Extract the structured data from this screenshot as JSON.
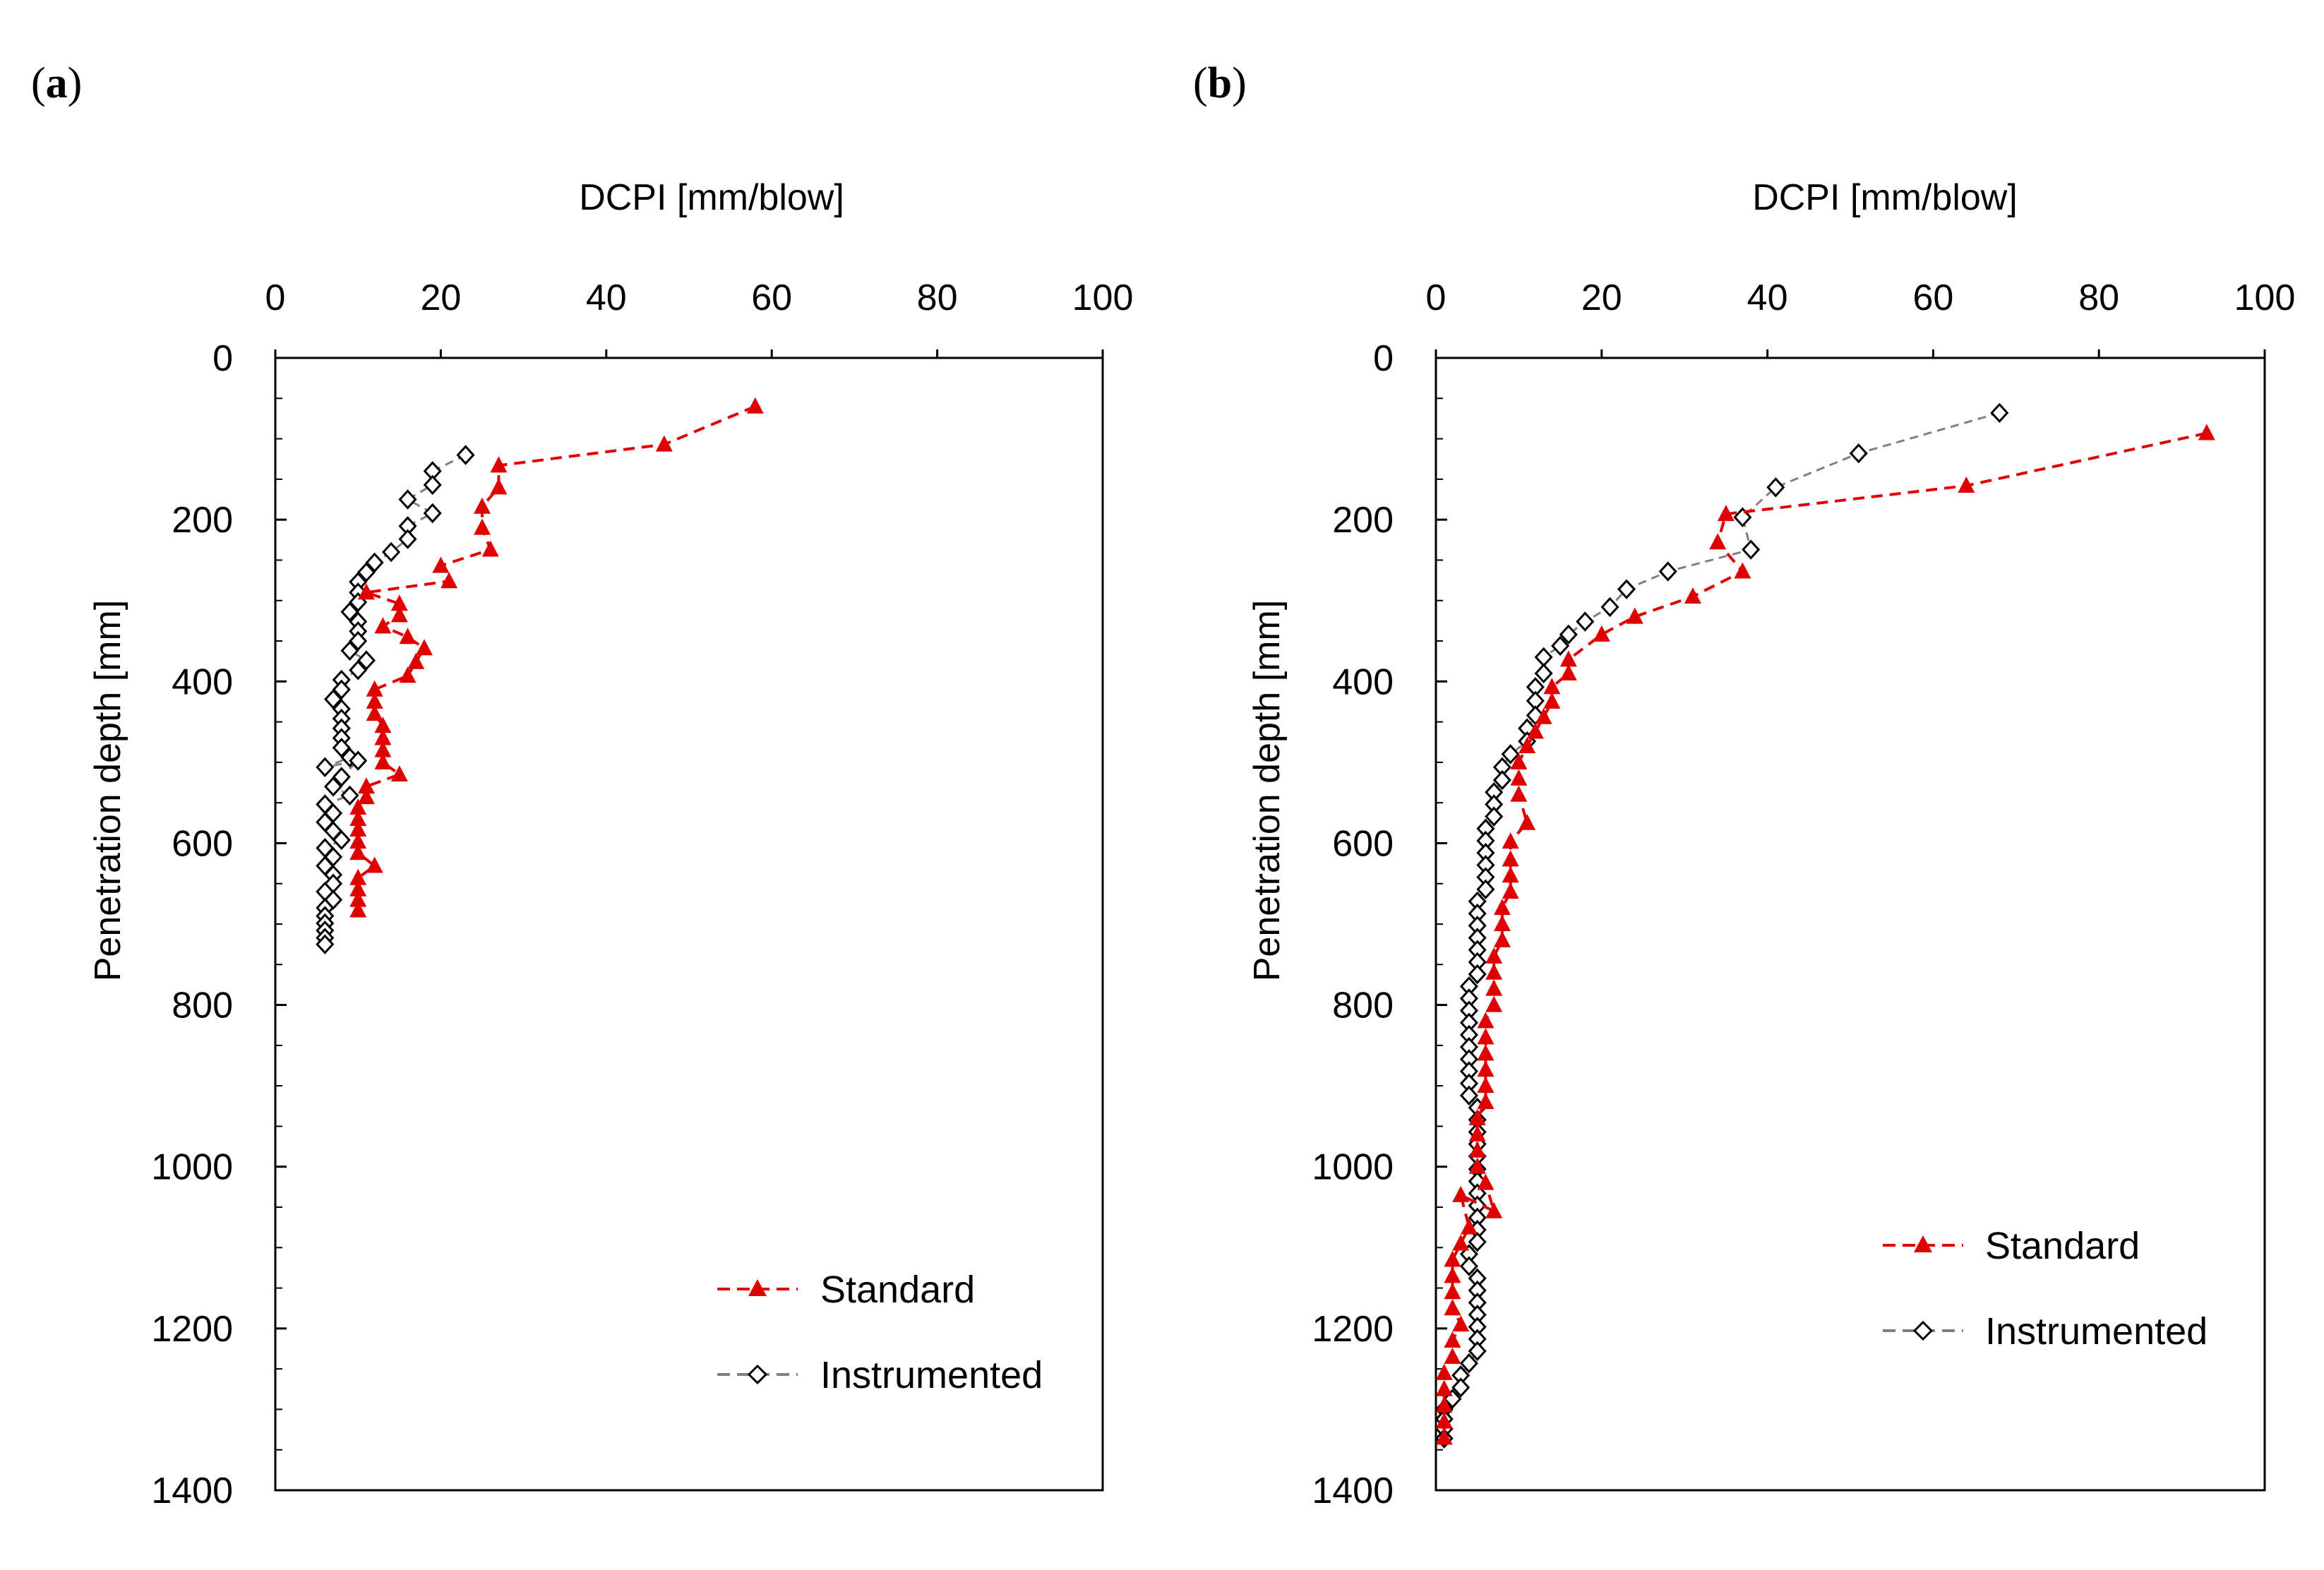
{
  "chart_data": [
    {
      "type": "scatter",
      "panel_label": "a",
      "xlabel": "DCPI [mm/blow]",
      "ylabel": "Penetration depth [mm]",
      "x_axis_position": "top",
      "y_axis_inverted": true,
      "xlim": [
        0,
        100
      ],
      "ylim": [
        0,
        1400
      ],
      "xticks": [
        0,
        20,
        40,
        60,
        80,
        100
      ],
      "yticks": [
        0,
        200,
        400,
        600,
        800,
        1000,
        1200,
        1400
      ],
      "grid": false,
      "legend_position": "bottom-right",
      "series": [
        {
          "name": "Standard",
          "color": "#e00000",
          "line_style": "dashed",
          "marker": "filled-triangle",
          "points": [
            [
              58,
              60
            ],
            [
              47,
              107
            ],
            [
              27,
              133
            ],
            [
              27,
              160
            ],
            [
              25,
              184
            ],
            [
              25,
              210
            ],
            [
              26,
              237
            ],
            [
              20,
              257
            ],
            [
              21,
              276
            ],
            [
              11,
              290
            ],
            [
              15,
              304
            ],
            [
              15,
              318
            ],
            [
              13,
              332
            ],
            [
              16,
              345
            ],
            [
              18,
              359
            ],
            [
              17,
              376
            ],
            [
              16,
              393
            ],
            [
              12,
              410
            ],
            [
              12,
              425
            ],
            [
              12,
              440
            ],
            [
              13,
              455
            ],
            [
              13,
              470
            ],
            [
              13,
              485
            ],
            [
              13,
              500
            ],
            [
              15,
              515
            ],
            [
              11,
              530
            ],
            [
              11,
              543
            ],
            [
              10,
              556
            ],
            [
              10,
              570
            ],
            [
              10,
              583
            ],
            [
              10,
              598
            ],
            [
              10,
              612
            ],
            [
              12,
              628
            ],
            [
              10,
              643
            ],
            [
              10,
              657
            ],
            [
              10,
              670
            ],
            [
              10,
              683
            ]
          ]
        },
        {
          "name": "Instrumented",
          "color": "#808080",
          "line_style": "dashed",
          "marker": "open-diamond",
          "points": [
            [
              23,
              120
            ],
            [
              19,
              140
            ],
            [
              19,
              157
            ],
            [
              16,
              175
            ],
            [
              19,
              192
            ],
            [
              16,
              208
            ],
            [
              16,
              224
            ],
            [
              14,
              240
            ],
            [
              12,
              253
            ],
            [
              11,
              265
            ],
            [
              10,
              277
            ],
            [
              10,
              290
            ],
            [
              10,
              302
            ],
            [
              9,
              314
            ],
            [
              10,
              326
            ],
            [
              10,
              338
            ],
            [
              10,
              350
            ],
            [
              9,
              362
            ],
            [
              11,
              374
            ],
            [
              10,
              386
            ],
            [
              8,
              398
            ],
            [
              8,
              410
            ],
            [
              7,
              422
            ],
            [
              8,
              434
            ],
            [
              8,
              446
            ],
            [
              8,
              458
            ],
            [
              8,
              470
            ],
            [
              8,
              482
            ],
            [
              9,
              494
            ],
            [
              6,
              506
            ],
            [
              10,
              498
            ],
            [
              8,
              518
            ],
            [
              7,
              530
            ],
            [
              9,
              541
            ],
            [
              6,
              552
            ],
            [
              7,
              563
            ],
            [
              6,
              574
            ],
            [
              7,
              585
            ],
            [
              8,
              596
            ],
            [
              6,
              606
            ],
            [
              7,
              617
            ],
            [
              6,
              628
            ],
            [
              7,
              639
            ],
            [
              7,
              650
            ],
            [
              6,
              660
            ],
            [
              7,
              670
            ],
            [
              6,
              680
            ],
            [
              6,
              690
            ],
            [
              6,
              699
            ],
            [
              6,
              708
            ],
            [
              6,
              717
            ],
            [
              6,
              725
            ]
          ]
        }
      ]
    },
    {
      "type": "scatter",
      "panel_label": "b",
      "xlabel": "DCPI [mm/blow]",
      "ylabel": "Penetration depth [mm]",
      "x_axis_position": "top",
      "y_axis_inverted": true,
      "xlim": [
        0,
        100
      ],
      "ylim": [
        0,
        1400
      ],
      "xticks": [
        0,
        20,
        40,
        60,
        80,
        100
      ],
      "yticks": [
        0,
        200,
        400,
        600,
        800,
        1000,
        1200,
        1400
      ],
      "grid": false,
      "legend_position": "right-bottom",
      "series": [
        {
          "name": "Standard",
          "color": "#e00000",
          "line_style": "dashed",
          "marker": "filled-triangle",
          "points": [
            [
              93,
              93
            ],
            [
              64,
              158
            ],
            [
              35,
              193
            ],
            [
              34,
              228
            ],
            [
              37,
              264
            ],
            [
              31,
              295
            ],
            [
              24,
              320
            ],
            [
              20,
              342
            ],
            [
              16,
              373
            ],
            [
              16,
              390
            ],
            [
              14,
              407
            ],
            [
              14,
              425
            ],
            [
              13,
              444
            ],
            [
              12,
              462
            ],
            [
              11,
              480
            ],
            [
              10,
              500
            ],
            [
              10,
              520
            ],
            [
              10,
              540
            ],
            [
              11,
              575
            ],
            [
              9,
              598
            ],
            [
              9,
              620
            ],
            [
              9,
              640
            ],
            [
              9,
              660
            ],
            [
              8,
              680
            ],
            [
              8,
              700
            ],
            [
              8,
              720
            ],
            [
              7,
              740
            ],
            [
              7,
              760
            ],
            [
              7,
              780
            ],
            [
              7,
              800
            ],
            [
              6,
              820
            ],
            [
              6,
              840
            ],
            [
              6,
              860
            ],
            [
              6,
              880
            ],
            [
              6,
              900
            ],
            [
              6,
              920
            ],
            [
              5,
              940
            ],
            [
              5,
              960
            ],
            [
              5,
              980
            ],
            [
              5,
              1000
            ],
            [
              6,
              1020
            ],
            [
              7,
              1055
            ],
            [
              3,
              1035
            ],
            [
              4,
              1075
            ],
            [
              3,
              1095
            ],
            [
              2,
              1115
            ],
            [
              2,
              1135
            ],
            [
              2,
              1155
            ],
            [
              2,
              1175
            ],
            [
              3,
              1195
            ],
            [
              2,
              1215
            ],
            [
              2,
              1235
            ],
            [
              1,
              1255
            ],
            [
              1,
              1275
            ],
            [
              1,
              1295
            ],
            [
              1,
              1315
            ],
            [
              1,
              1335
            ]
          ]
        },
        {
          "name": "Instrumented",
          "color": "#808080",
          "line_style": "dashed",
          "marker": "open-diamond",
          "points": [
            [
              68,
              68
            ],
            [
              51,
              118
            ],
            [
              41,
              160
            ],
            [
              37,
              197
            ],
            [
              38,
              237
            ],
            [
              28,
              264
            ],
            [
              23,
              286
            ],
            [
              21,
              308
            ],
            [
              18,
              326
            ],
            [
              16,
              342
            ],
            [
              15,
              356
            ],
            [
              13,
              370
            ],
            [
              13,
              390
            ],
            [
              12,
              407
            ],
            [
              12,
              424
            ],
            [
              12,
              442
            ],
            [
              11,
              458
            ],
            [
              11,
              474
            ],
            [
              9,
              490
            ],
            [
              8,
              506
            ],
            [
              8,
              522
            ],
            [
              7,
              537
            ],
            [
              7,
              552
            ],
            [
              7,
              567
            ],
            [
              6,
              582
            ],
            [
              6,
              597
            ],
            [
              6,
              612
            ],
            [
              6,
              627
            ],
            [
              6,
              642
            ],
            [
              6,
              657
            ],
            [
              5,
              672
            ],
            [
              5,
              687
            ],
            [
              5,
              702
            ],
            [
              5,
              717
            ],
            [
              5,
              732
            ],
            [
              5,
              747
            ],
            [
              5,
              762
            ],
            [
              4,
              777
            ],
            [
              4,
              792
            ],
            [
              4,
              807
            ],
            [
              4,
              822
            ],
            [
              4,
              837
            ],
            [
              4,
              852
            ],
            [
              4,
              867
            ],
            [
              4,
              882
            ],
            [
              4,
              897
            ],
            [
              4,
              912
            ],
            [
              5,
              927
            ],
            [
              5,
              942
            ],
            [
              5,
              957
            ],
            [
              5,
              972
            ],
            [
              5,
              987
            ],
            [
              5,
              1003
            ],
            [
              5,
              1018
            ],
            [
              5,
              1033
            ],
            [
              5,
              1048
            ],
            [
              5,
              1063
            ],
            [
              5,
              1078
            ],
            [
              5,
              1093
            ],
            [
              4,
              1108
            ],
            [
              4,
              1123
            ],
            [
              5,
              1138
            ],
            [
              5,
              1153
            ],
            [
              5,
              1168
            ],
            [
              5,
              1183
            ],
            [
              5,
              1198
            ],
            [
              5,
              1213
            ],
            [
              5,
              1228
            ],
            [
              4,
              1243
            ],
            [
              3,
              1258
            ],
            [
              3,
              1273
            ],
            [
              2,
              1287
            ],
            [
              1,
              1300
            ],
            [
              1,
              1312
            ],
            [
              1,
              1324
            ],
            [
              1,
              1336
            ]
          ]
        }
      ]
    }
  ]
}
